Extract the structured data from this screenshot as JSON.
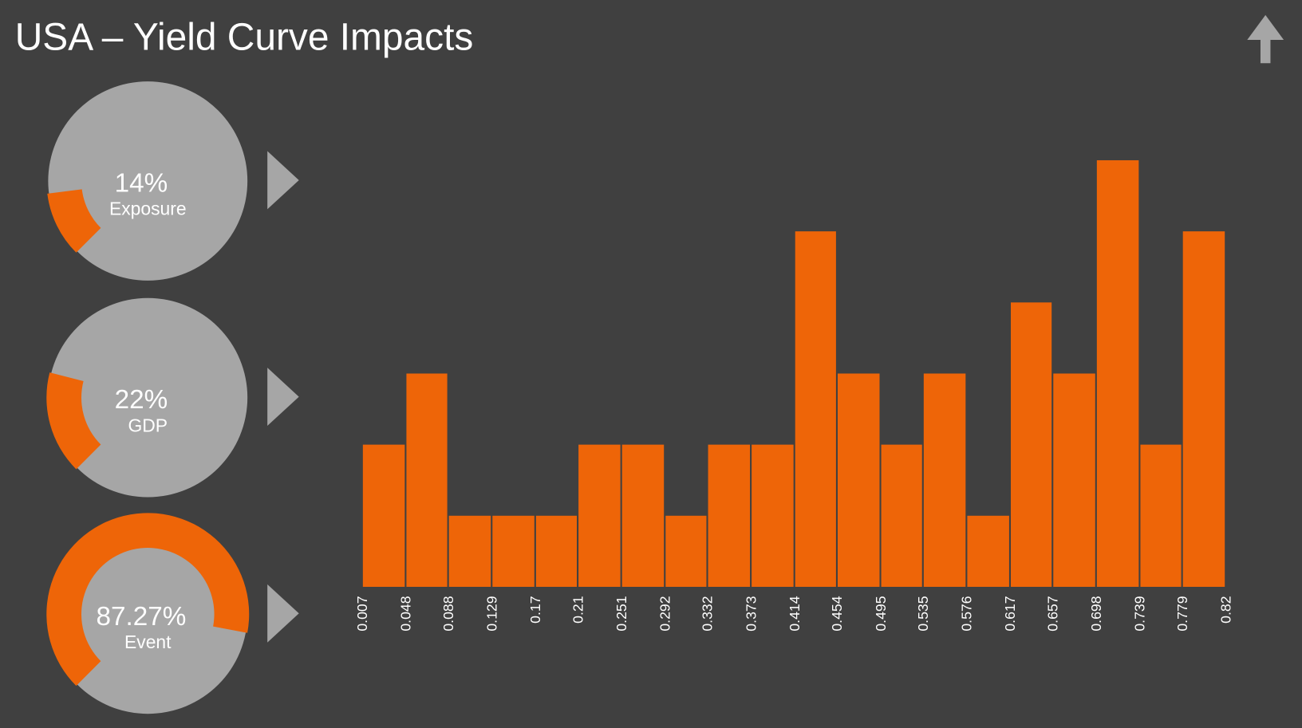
{
  "title": "USA – Yield Curve Impacts",
  "chart_data": [
    {
      "type": "gauge",
      "values": [
        14
      ],
      "value_labels": [
        "14%"
      ],
      "label": "Exposure",
      "color": "#ee6508",
      "track_color": "#a6a6a6"
    },
    {
      "type": "gauge",
      "values": [
        22
      ],
      "value_labels": [
        "22%"
      ],
      "label": "GDP",
      "color": "#ee6508",
      "track_color": "#a6a6a6"
    },
    {
      "type": "gauge",
      "values": [
        87.27
      ],
      "value_labels": [
        "87.27%"
      ],
      "label": "Event",
      "color": "#ee6508",
      "track_color": "#a6a6a6"
    },
    {
      "type": "histogram",
      "bins": [
        0.007,
        0.048,
        0.088,
        0.129,
        0.17,
        0.21,
        0.251,
        0.292,
        0.332,
        0.373,
        0.414,
        0.454,
        0.495,
        0.535,
        0.576,
        0.617,
        0.657,
        0.698,
        0.739,
        0.779,
        0.82
      ],
      "counts": [
        2,
        3,
        1,
        1,
        1,
        2,
        2,
        1,
        2,
        2,
        5,
        3,
        2,
        3,
        1,
        4,
        3,
        6,
        2,
        5
      ],
      "xlim": [
        0.007,
        0.82
      ],
      "color": "#ee6508"
    }
  ]
}
